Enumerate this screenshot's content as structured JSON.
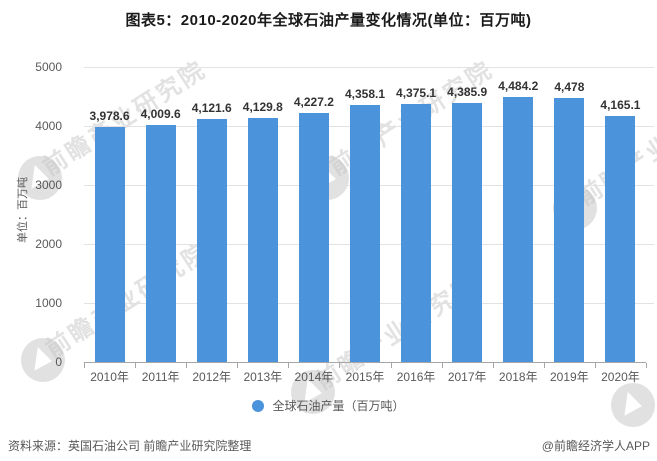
{
  "title": "图表5：2010-2020年全球石油产量变化情况(单位：百万吨)",
  "chart_data": {
    "type": "bar",
    "categories": [
      "2010年",
      "2011年",
      "2012年",
      "2013年",
      "2014年",
      "2015年",
      "2016年",
      "2017年",
      "2018年",
      "2019年",
      "2020年"
    ],
    "series": [
      {
        "name": "全球石油产量（百万吨）",
        "values": [
          3978.6,
          4009.6,
          4121.6,
          4129.8,
          4227.2,
          4358.1,
          4375.1,
          4385.9,
          4484.2,
          4478,
          4165.1
        ],
        "labels": [
          "3,978.6",
          "4,009.6",
          "4,121.6",
          "4,129.8",
          "4,227.2",
          "4,358.1",
          "4,375.1",
          "4,385.9",
          "4,484.2",
          "4,478",
          "4,165.1"
        ]
      }
    ],
    "title": "图表5：2010-2020年全球石油产量变化情况(单位：百万吨)",
    "xlabel": "",
    "ylabel": "单位：百万吨",
    "yticks": [
      0,
      1000,
      2000,
      3000,
      4000,
      5000
    ],
    "ylim": [
      0,
      5000
    ],
    "grid": true,
    "legend_position": "bottom",
    "bar_color": "#4B93DB"
  },
  "y_axis_unit": "单位：百万吨",
  "legend": {
    "marker_color": "#4B93DB",
    "label": "全球石油产量（百万吨）"
  },
  "footer": {
    "source": "资料来源：英国石油公司 前瞻产业研究院整理",
    "credit": "@前瞻经济学人APP"
  },
  "watermark": {
    "text": "前瞻产业研究院"
  },
  "colors": {
    "bar": "#4B93DB",
    "gridline": "#e2e2e2",
    "axis_line": "#a6a6a6",
    "tick_text": "#595959",
    "value_text": "#333333",
    "title_text": "#1a1a1a"
  }
}
